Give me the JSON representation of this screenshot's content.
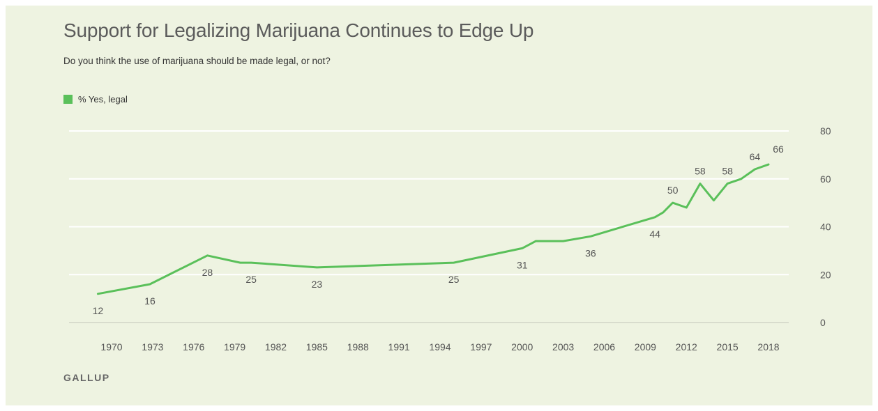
{
  "title": "Support for Legalizing Marijuana Continues to Edge Up",
  "subtitle": "Do you think the use of marijuana should be made legal, or not?",
  "brand": "GALLUP",
  "legend": {
    "label": "% Yes, legal",
    "color": "#5ac05a"
  },
  "colors": {
    "background": "#eef3e1",
    "gridline": "#ffffff",
    "axis": "#d8dccd"
  },
  "chart_data": {
    "type": "line",
    "title": "Support for Legalizing Marijuana Continues to Edge Up",
    "subtitle": "Do you think the use of marijuana should be made legal, or not?",
    "xlabel": "",
    "ylabel": "",
    "ylim": [
      0,
      80
    ],
    "xlim": [
      1968,
      2019
    ],
    "x_ticks": [
      1970,
      1973,
      1976,
      1979,
      1982,
      1985,
      1988,
      1991,
      1994,
      1997,
      2000,
      2003,
      2006,
      2009,
      2012,
      2015,
      2018
    ],
    "y_ticks": [
      0,
      20,
      40,
      60,
      80
    ],
    "grid": true,
    "legend_position": "top-left",
    "series": [
      {
        "name": "% Yes, legal",
        "color": "#5ac05a",
        "points": [
          {
            "x": 1969,
            "y": 12
          },
          {
            "x": 1972.8,
            "y": 16
          },
          {
            "x": 1977,
            "y": 28
          },
          {
            "x": 1979.4,
            "y": 25
          },
          {
            "x": 1980.2,
            "y": 25
          },
          {
            "x": 1985,
            "y": 23
          },
          {
            "x": 1995,
            "y": 25
          },
          {
            "x": 2000,
            "y": 31
          },
          {
            "x": 2001,
            "y": 34
          },
          {
            "x": 2003,
            "y": 34
          },
          {
            "x": 2005,
            "y": 36
          },
          {
            "x": 2009.7,
            "y": 44
          },
          {
            "x": 2010.3,
            "y": 46
          },
          {
            "x": 2011,
            "y": 50
          },
          {
            "x": 2012,
            "y": 48
          },
          {
            "x": 2013,
            "y": 58
          },
          {
            "x": 2014,
            "y": 51
          },
          {
            "x": 2015,
            "y": 58
          },
          {
            "x": 2016,
            "y": 60
          },
          {
            "x": 2017,
            "y": 64
          },
          {
            "x": 2018,
            "y": 66
          }
        ]
      }
    ],
    "data_labels": [
      {
        "x": 1969,
        "y": 12,
        "text": "12",
        "pos": "below"
      },
      {
        "x": 1972.8,
        "y": 16,
        "text": "16",
        "pos": "below"
      },
      {
        "x": 1977,
        "y": 28,
        "text": "28",
        "pos": "below"
      },
      {
        "x": 1980.2,
        "y": 25,
        "text": "25",
        "pos": "below"
      },
      {
        "x": 1985,
        "y": 23,
        "text": "23",
        "pos": "below"
      },
      {
        "x": 1995,
        "y": 25,
        "text": "25",
        "pos": "below"
      },
      {
        "x": 2000,
        "y": 31,
        "text": "31",
        "pos": "below"
      },
      {
        "x": 2005,
        "y": 36,
        "text": "36",
        "pos": "below"
      },
      {
        "x": 2009.7,
        "y": 44,
        "text": "44",
        "pos": "below"
      },
      {
        "x": 2011,
        "y": 50,
        "text": "50",
        "pos": "above"
      },
      {
        "x": 2013,
        "y": 58,
        "text": "58",
        "pos": "above"
      },
      {
        "x": 2015,
        "y": 58,
        "text": "58",
        "pos": "above"
      },
      {
        "x": 2017,
        "y": 64,
        "text": "64",
        "pos": "above"
      },
      {
        "x": 2018,
        "y": 66,
        "text": "66",
        "pos": "above-right"
      }
    ]
  }
}
